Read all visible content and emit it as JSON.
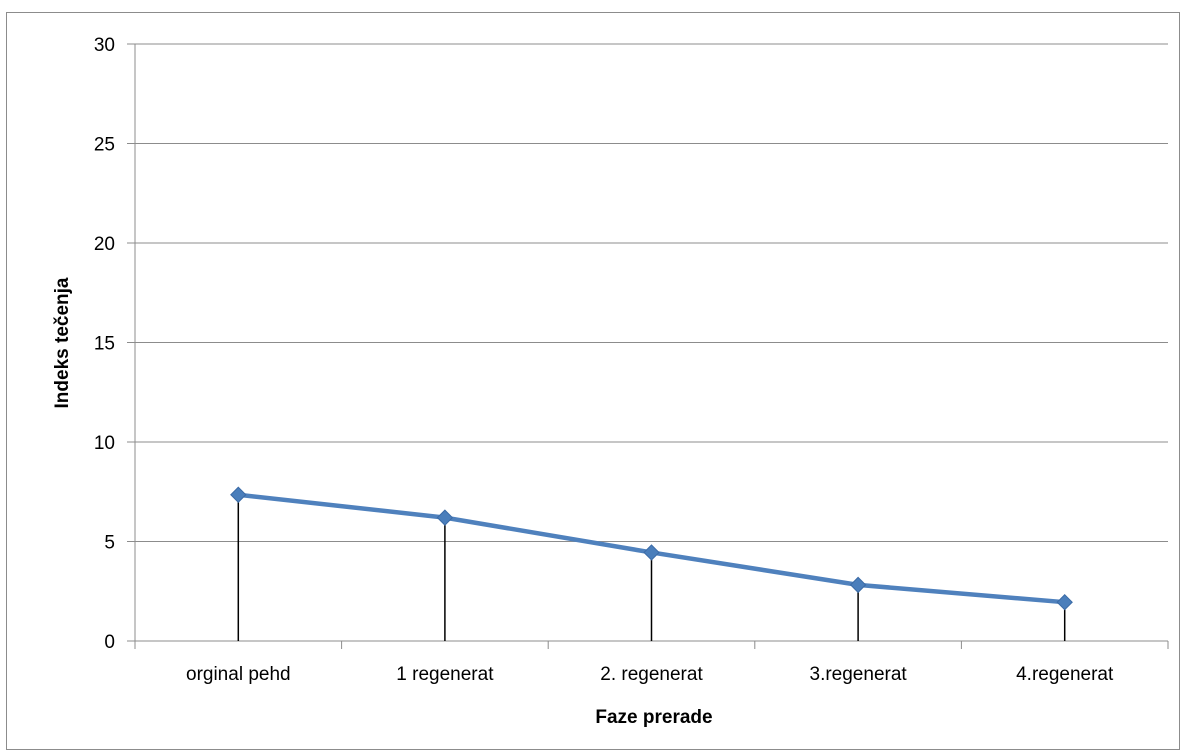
{
  "chart_data": {
    "type": "line",
    "title": "",
    "xlabel": "Faze prerade",
    "ylabel": "Indeks tečenja",
    "categories": [
      "orginal pehd",
      "1 regenerat",
      "2. regenerat",
      "3.regenerat",
      "4.regenerat"
    ],
    "series": [
      {
        "values": [
          7.35,
          6.2,
          4.45,
          2.82,
          1.95
        ]
      }
    ],
    "ylim": [
      0,
      30
    ],
    "yticks": [
      0,
      5,
      10,
      15,
      20,
      25,
      30
    ],
    "grid": true,
    "legend": "none",
    "drop_lines": true,
    "marker": "diamond",
    "colors": {
      "series": "#4f81bd",
      "marker": "#4a7ebb",
      "grid": "#8c8c8c",
      "drop_line": "#000000"
    }
  }
}
